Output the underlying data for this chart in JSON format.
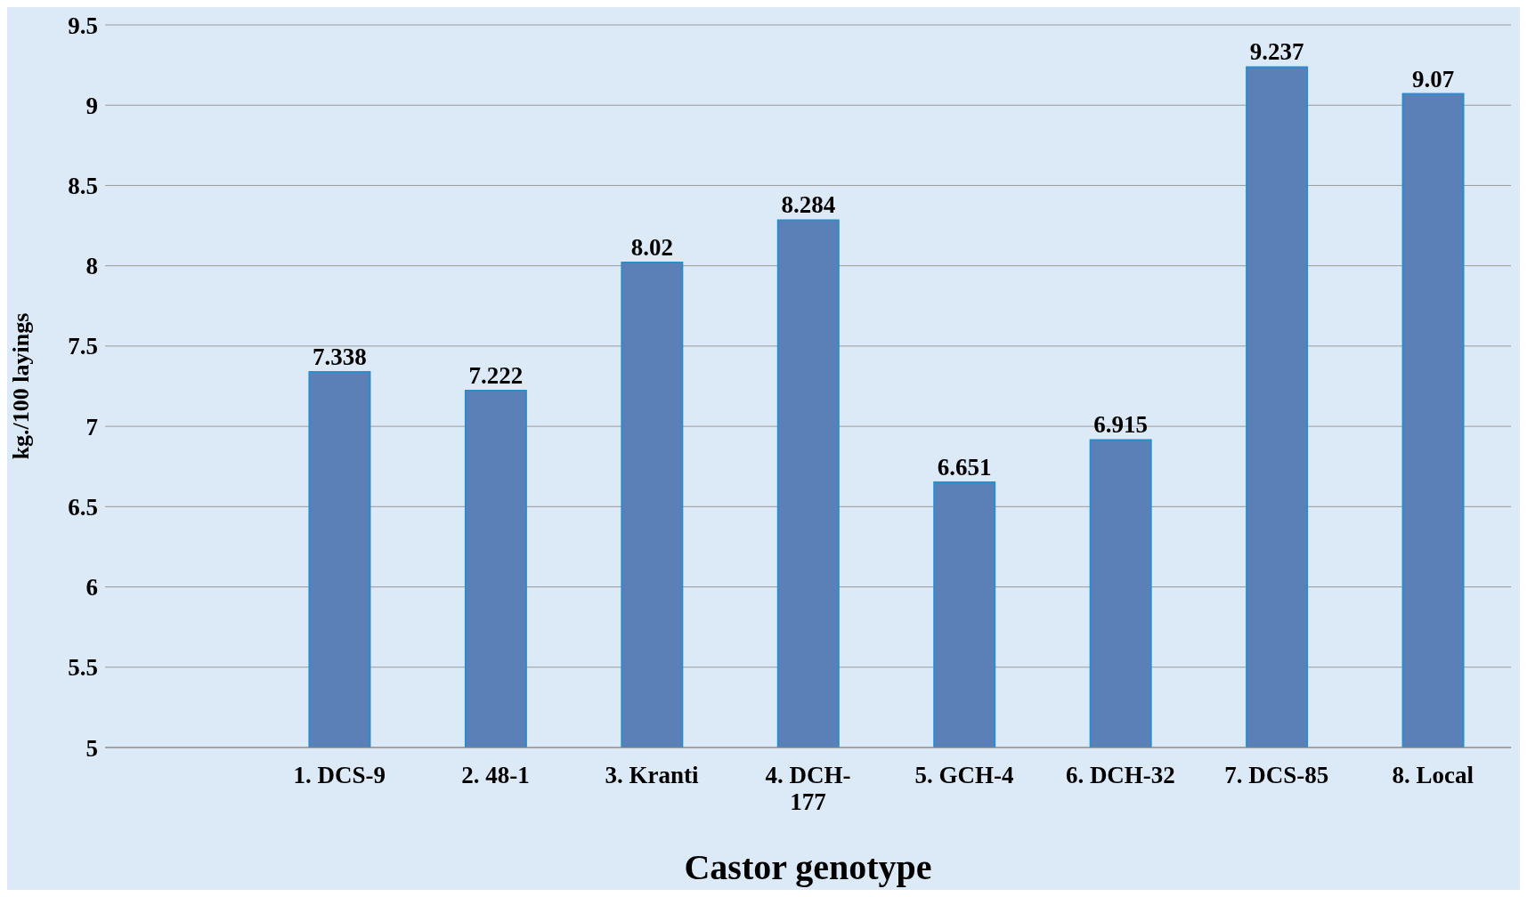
{
  "chart_data": {
    "type": "bar",
    "xlabel": "Castor genotype",
    "ylabel": "kg./100 layings",
    "categories": [
      null,
      "1. DCS-9",
      "2. 48-1",
      "3. Kranti",
      "4. DCH-177",
      "5. GCH-4",
      "6. DCH-32",
      "7. DCS-85",
      "8. Local"
    ],
    "values": [
      null,
      7.338,
      7.222,
      8.02,
      8.284,
      6.651,
      6.915,
      9.237,
      9.07
    ],
    "color": "#5b80b8",
    "ylim": [
      5,
      9.5
    ],
    "yticks": [
      5,
      5.5,
      6,
      6.5,
      7,
      7.5,
      8,
      8.5,
      9,
      9.5
    ],
    "grid": "y",
    "data_labels": true
  }
}
